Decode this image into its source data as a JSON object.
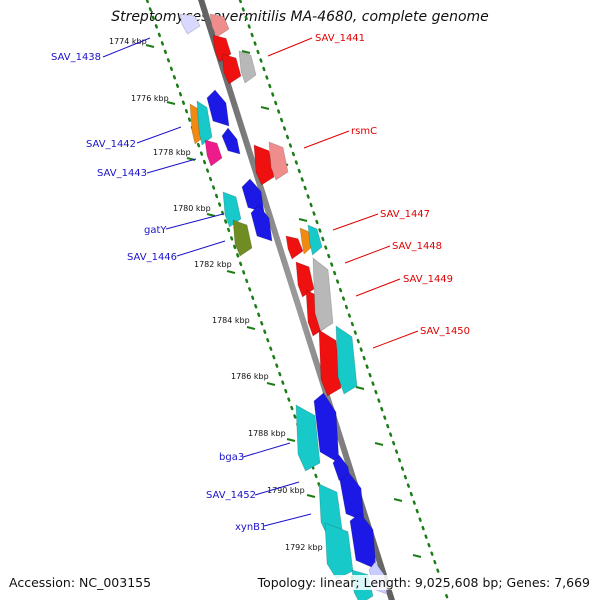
{
  "title": "Streptomyces avermitilis MA-4680, complete genome",
  "footer": {
    "accession": "Accession: NC_003155",
    "summary": "Topology: linear; Length: 9,025,608 bp; Genes: 7,669"
  },
  "colors": {
    "backbone": "#8a8a8a",
    "tick_green": "#1b7d16",
    "label_blue": "#1c12c8",
    "label_red": "#e00000",
    "gene_red": "#ef1010",
    "gene_blue": "#1c19e7",
    "gene_cyan": "#18c9c9",
    "gene_gray": "#b8b8b8",
    "gene_orange": "#f18a10",
    "gene_pink": "#ee1c8b",
    "gene_olive": "#6f8d22",
    "gene_salmon": "#ef8d8d"
  },
  "axis_labels": [
    "1774 kbp",
    "1776 kbp",
    "1778 kbp",
    "1780 kbp",
    "1782 kbp",
    "1784 kbp",
    "1786 kbp",
    "1788 kbp",
    "1790 kbp",
    "1792 kbp"
  ],
  "left_gene_labels": [
    "SAV_1438",
    "SAV_1442",
    "SAV_1443",
    "gatY",
    "SAV_1446",
    "bga3",
    "SAV_1452",
    "xynB1"
  ],
  "right_gene_labels": [
    "SAV_1441",
    "rsmC",
    "SAV_1447",
    "SAV_1448",
    "SAV_1449",
    "SAV_1450"
  ]
}
